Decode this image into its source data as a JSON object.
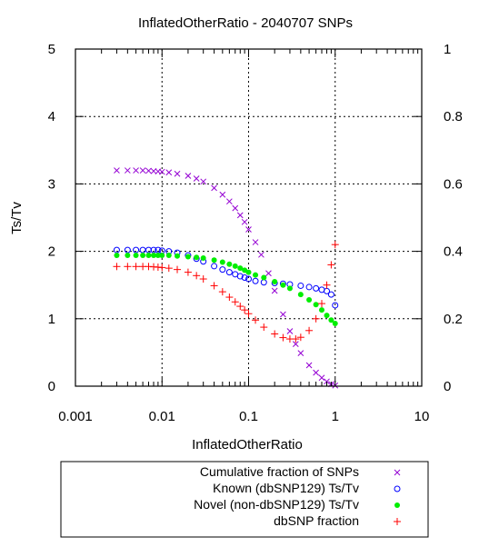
{
  "chart_data": {
    "type": "scatter",
    "title": "InflatedOtherRatio - 2040707 SNPs",
    "xlabel": "InflatedOtherRatio",
    "ylabel": "Ts/Tv",
    "xscale": "log",
    "xlim": [
      0.001,
      10
    ],
    "ylim": [
      0,
      5
    ],
    "y2lim": [
      0,
      1
    ],
    "x_ticks": [
      "0.001",
      "0.01",
      "0.1",
      "1",
      "10"
    ],
    "y_ticks": [
      "0",
      "1",
      "2",
      "3",
      "4",
      "5"
    ],
    "y2_ticks": [
      "0",
      "0.2",
      "0.4",
      "0.6",
      "0.8",
      "1"
    ],
    "grid": true,
    "legend_position": "bottom",
    "series": [
      {
        "name": "Cumulative fraction of SNPs",
        "axis": "y2",
        "marker": "x",
        "color": "#9400d3",
        "x": [
          0.003,
          0.004,
          0.005,
          0.006,
          0.007,
          0.008,
          0.009,
          0.01,
          0.012,
          0.015,
          0.02,
          0.025,
          0.03,
          0.04,
          0.05,
          0.06,
          0.07,
          0.08,
          0.09,
          0.1,
          0.12,
          0.14,
          0.17,
          0.2,
          0.25,
          0.3,
          0.35,
          0.4,
          0.5,
          0.6,
          0.7,
          0.8,
          0.9,
          1.0
        ],
        "y": [
          0.64,
          0.64,
          0.64,
          0.64,
          0.639,
          0.638,
          0.637,
          0.636,
          0.634,
          0.63,
          0.624,
          0.616,
          0.607,
          0.588,
          0.568,
          0.548,
          0.528,
          0.507,
          0.487,
          0.465,
          0.427,
          0.39,
          0.335,
          0.283,
          0.213,
          0.163,
          0.125,
          0.098,
          0.062,
          0.04,
          0.025,
          0.014,
          0.006,
          0.002
        ]
      },
      {
        "name": "Known (dbSNP129) Ts/Tv",
        "axis": "y",
        "marker": "o",
        "color": "#0000ff",
        "x": [
          0.003,
          0.004,
          0.005,
          0.006,
          0.007,
          0.008,
          0.009,
          0.01,
          0.012,
          0.015,
          0.02,
          0.025,
          0.03,
          0.04,
          0.05,
          0.06,
          0.07,
          0.08,
          0.09,
          0.1,
          0.12,
          0.15,
          0.2,
          0.25,
          0.3,
          0.4,
          0.5,
          0.6,
          0.7,
          0.8,
          0.9,
          1.0
        ],
        "y": [
          2.02,
          2.02,
          2.02,
          2.02,
          2.02,
          2.02,
          2.02,
          2.01,
          2.0,
          1.98,
          1.94,
          1.89,
          1.85,
          1.78,
          1.73,
          1.69,
          1.66,
          1.63,
          1.61,
          1.59,
          1.56,
          1.54,
          1.53,
          1.52,
          1.51,
          1.49,
          1.47,
          1.45,
          1.43,
          1.41,
          1.36,
          1.2
        ]
      },
      {
        "name": "Novel (non-dbSNP129) Ts/Tv",
        "axis": "y",
        "marker": "filled-circle",
        "color": "#00ee00",
        "x": [
          0.003,
          0.004,
          0.005,
          0.006,
          0.007,
          0.008,
          0.009,
          0.01,
          0.012,
          0.015,
          0.02,
          0.025,
          0.03,
          0.04,
          0.05,
          0.06,
          0.07,
          0.08,
          0.09,
          0.1,
          0.12,
          0.15,
          0.2,
          0.25,
          0.3,
          0.4,
          0.5,
          0.6,
          0.7,
          0.8,
          0.9,
          1.0
        ],
        "y": [
          1.94,
          1.94,
          1.94,
          1.94,
          1.94,
          1.94,
          1.94,
          1.94,
          1.94,
          1.93,
          1.92,
          1.91,
          1.9,
          1.87,
          1.84,
          1.81,
          1.78,
          1.75,
          1.72,
          1.69,
          1.65,
          1.61,
          1.55,
          1.5,
          1.45,
          1.36,
          1.28,
          1.21,
          1.13,
          1.05,
          0.98,
          0.93
        ]
      },
      {
        "name": "dbSNP fraction",
        "axis": "y2",
        "marker": "+",
        "color": "#ff0000",
        "x": [
          0.003,
          0.004,
          0.005,
          0.006,
          0.007,
          0.008,
          0.009,
          0.01,
          0.012,
          0.015,
          0.02,
          0.025,
          0.03,
          0.04,
          0.05,
          0.06,
          0.07,
          0.08,
          0.09,
          0.1,
          0.12,
          0.15,
          0.2,
          0.25,
          0.3,
          0.35,
          0.4,
          0.5,
          0.6,
          0.7,
          0.8,
          0.9,
          1.0
        ],
        "y": [
          0.355,
          0.355,
          0.355,
          0.355,
          0.355,
          0.354,
          0.353,
          0.352,
          0.35,
          0.346,
          0.338,
          0.328,
          0.318,
          0.298,
          0.28,
          0.264,
          0.25,
          0.237,
          0.226,
          0.215,
          0.196,
          0.175,
          0.155,
          0.144,
          0.14,
          0.14,
          0.145,
          0.165,
          0.2,
          0.245,
          0.3,
          0.36,
          0.42
        ]
      }
    ]
  }
}
